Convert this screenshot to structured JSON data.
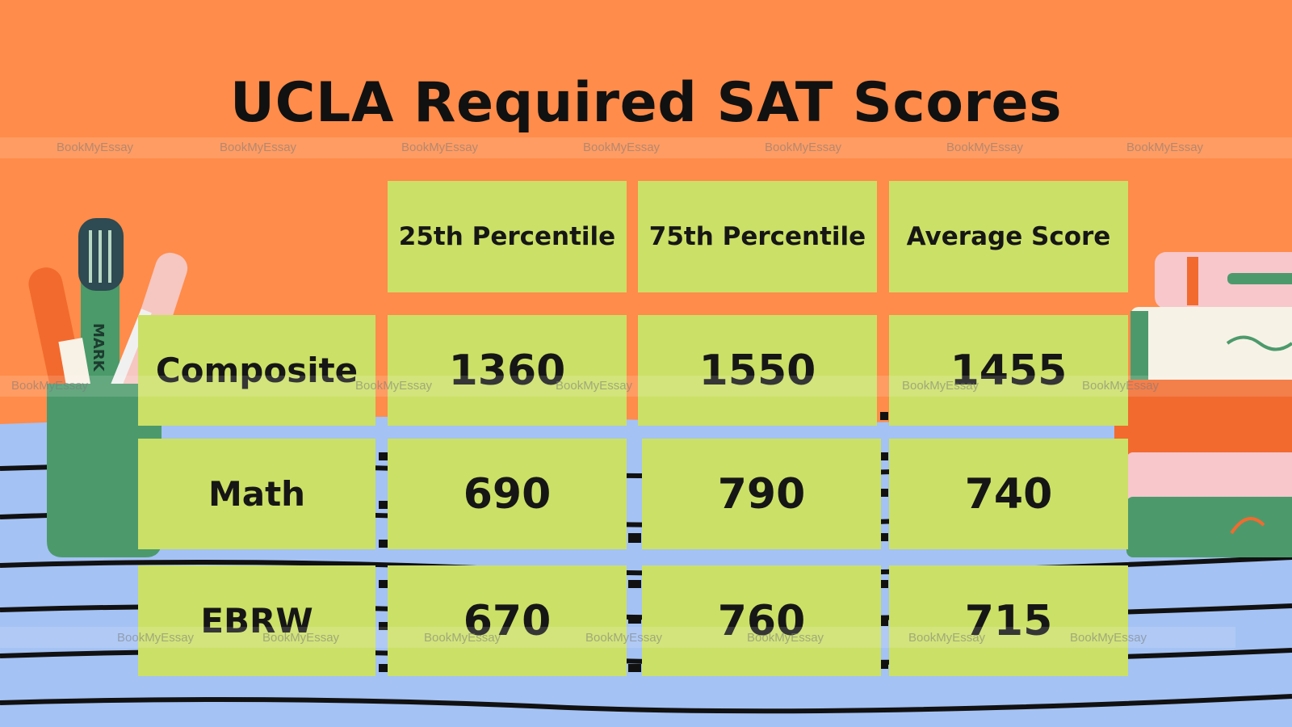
{
  "title": "UCLA Required SAT Scores",
  "watermark": "BookMyEssay",
  "chart_data": {
    "type": "table",
    "title": "UCLA Required SAT Scores",
    "columns": [
      "25th Percentile",
      "75th Percentile",
      "Average Score"
    ],
    "rows": [
      {
        "label": "Composite",
        "values": [
          "1360",
          "1550",
          "1455"
        ]
      },
      {
        "label": "Math",
        "values": [
          "690",
          "790",
          "740"
        ]
      },
      {
        "label": "EBRW",
        "values": [
          "670",
          "760",
          "715"
        ]
      }
    ]
  },
  "decor": {
    "pen_cup_label": "MARK"
  },
  "colors": {
    "background": "#ff8c4a",
    "cell": "#cbe066",
    "desk": "#a4c2f4",
    "text": "#111111"
  }
}
